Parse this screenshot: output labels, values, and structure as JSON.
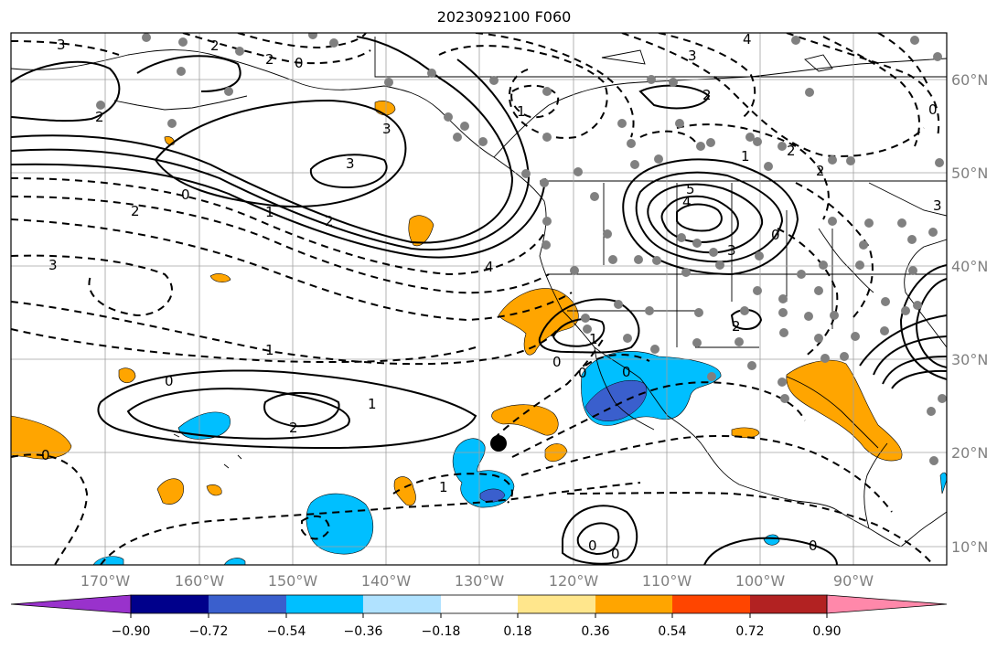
{
  "title": "2023092100 F060",
  "map": {
    "projection": "PlateCarree",
    "lon_range": [
      -180,
      -80
    ],
    "lat_range": [
      8,
      65
    ],
    "lon_ticks": [
      "170°W",
      "160°W",
      "150°W",
      "140°W",
      "130°W",
      "120°W",
      "110°W",
      "100°W",
      "90°W"
    ],
    "lat_ticks": [
      "60°N",
      "50°N",
      "40°N",
      "30°N",
      "20°N",
      "10°N"
    ],
    "grid": true,
    "coastline_color": "#000000",
    "station_color": "#808080",
    "storm_center": {
      "lon": -128.5,
      "lat": 21.0,
      "color": "#000000"
    }
  },
  "contour_labels": [
    "3",
    "2",
    "2",
    "0",
    "2",
    "3",
    "3",
    "2",
    "1",
    "2",
    "0",
    "3",
    "4",
    "3",
    "2",
    "1",
    "0",
    "5",
    "4",
    "3",
    "2",
    "0",
    "1",
    "2",
    "3",
    "4",
    "0",
    "1",
    "0",
    "2",
    "0",
    "1",
    "2",
    "1",
    "0",
    "1",
    "0",
    "0",
    "0",
    "0"
  ],
  "colorbar": {
    "ticks": [
      "−0.90",
      "−0.72",
      "−0.54",
      "−0.36",
      "−0.18",
      "0.18",
      "0.36",
      "0.54",
      "0.72",
      "0.90"
    ],
    "colors": [
      "#9932cc",
      "#00008b",
      "#3a5fcd",
      "#00bfff",
      "#b0e2ff",
      "#ffffff",
      "#ffe68c",
      "#ffa500",
      "#ff4500",
      "#b22222",
      "#ff88aa"
    ],
    "extend": "both"
  },
  "colors": {
    "negative_fill_light": "#00bfff",
    "negative_fill_dark": "#3a5fcd",
    "positive_fill": "#ffa500"
  }
}
